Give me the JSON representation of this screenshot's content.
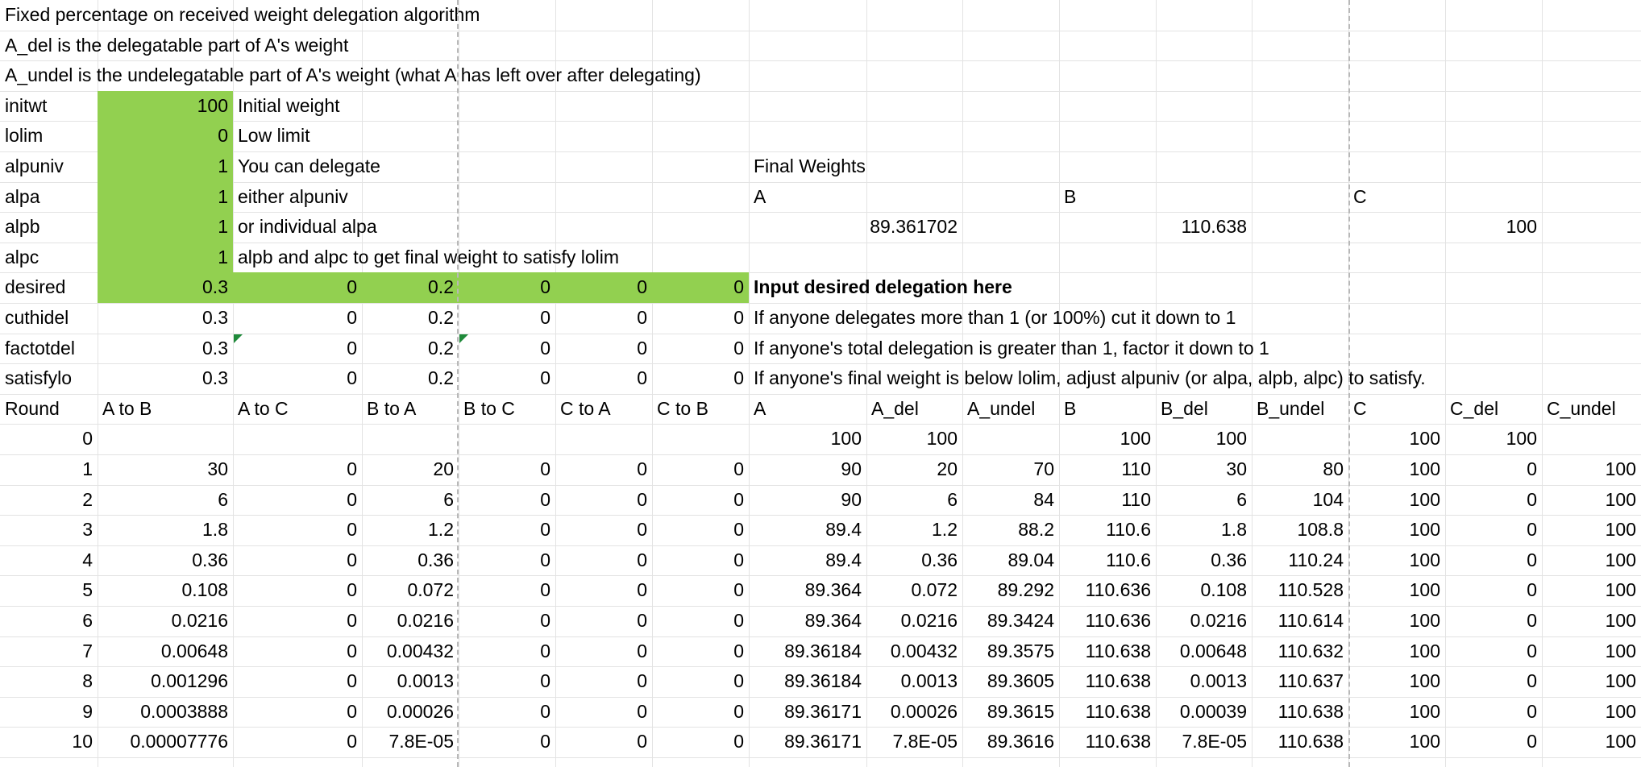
{
  "header_lines": [
    "Fixed percentage on received weight delegation algorithm",
    "A_del is the delegatable part of A's weight",
    "A_undel is the undelegatable part of A's weight (what A has left over after delegating)"
  ],
  "params": [
    {
      "name": "initwt",
      "value": "100",
      "desc": "Initial weight"
    },
    {
      "name": "lolim",
      "value": "0",
      "desc": "Low limit"
    },
    {
      "name": "alpuniv",
      "value": "1",
      "desc": "You can delegate"
    },
    {
      "name": "alpa",
      "value": "1",
      "desc": "either alpuniv"
    },
    {
      "name": "alpb",
      "value": "1",
      "desc": "or individual alpa"
    },
    {
      "name": "alpc",
      "value": "1",
      "desc": "alpb and alpc to get final weight to satisfy lolim"
    }
  ],
  "final_weights": {
    "title": "Final Weights",
    "labels": [
      "A",
      "B",
      "C"
    ],
    "values": [
      "89.361702",
      "110.638",
      "100"
    ]
  },
  "delegation_rows": [
    {
      "name": "desired",
      "values": [
        "0.3",
        "0",
        "0.2",
        "0",
        "0",
        "0"
      ],
      "desc": "Input desired delegation here"
    },
    {
      "name": "cuthidel",
      "values": [
        "0.3",
        "0",
        "0.2",
        "0",
        "0",
        "0"
      ],
      "desc": "If anyone delegates more than 1 (or 100%) cut it down to 1"
    },
    {
      "name": "factotdel",
      "values": [
        "0.3",
        "0",
        "0.2",
        "0",
        "0",
        "0"
      ],
      "desc": "If anyone's total delegation is greater than 1, factor it down to 1"
    },
    {
      "name": "satisfylo",
      "values": [
        "0.3",
        "0",
        "0.2",
        "0",
        "0",
        "0"
      ],
      "desc": "If anyone's final weight is below lolim, adjust alpuniv (or alpa, alpb, alpc) to satisfy."
    }
  ],
  "table_headers": [
    "Round",
    "A to B",
    "A to C",
    "B to A",
    "B to C",
    "C to A",
    "C to B",
    "A",
    "A_del",
    "A_undel",
    "B",
    "B_del",
    "B_undel",
    "C",
    "C_del",
    "C_undel"
  ],
  "table_rows": [
    [
      "0",
      "",
      "",
      "",
      "",
      "",
      "",
      "100",
      "100",
      "",
      "100",
      "100",
      "",
      "100",
      "100",
      ""
    ],
    [
      "1",
      "30",
      "0",
      "20",
      "0",
      "0",
      "0",
      "90",
      "20",
      "70",
      "110",
      "30",
      "80",
      "100",
      "0",
      "100"
    ],
    [
      "2",
      "6",
      "0",
      "6",
      "0",
      "0",
      "0",
      "90",
      "6",
      "84",
      "110",
      "6",
      "104",
      "100",
      "0",
      "100"
    ],
    [
      "3",
      "1.8",
      "0",
      "1.2",
      "0",
      "0",
      "0",
      "89.4",
      "1.2",
      "88.2",
      "110.6",
      "1.8",
      "108.8",
      "100",
      "0",
      "100"
    ],
    [
      "4",
      "0.36",
      "0",
      "0.36",
      "0",
      "0",
      "0",
      "89.4",
      "0.36",
      "89.04",
      "110.6",
      "0.36",
      "110.24",
      "100",
      "0",
      "100"
    ],
    [
      "5",
      "0.108",
      "0",
      "0.072",
      "0",
      "0",
      "0",
      "89.364",
      "0.072",
      "89.292",
      "110.636",
      "0.108",
      "110.528",
      "100",
      "0",
      "100"
    ],
    [
      "6",
      "0.0216",
      "0",
      "0.0216",
      "0",
      "0",
      "0",
      "89.364",
      "0.0216",
      "89.3424",
      "110.636",
      "0.0216",
      "110.614",
      "100",
      "0",
      "100"
    ],
    [
      "7",
      "0.00648",
      "0",
      "0.00432",
      "0",
      "0",
      "0",
      "89.36184",
      "0.00432",
      "89.3575",
      "110.638",
      "0.00648",
      "110.632",
      "100",
      "0",
      "100"
    ],
    [
      "8",
      "0.001296",
      "0",
      "0.0013",
      "0",
      "0",
      "0",
      "89.36184",
      "0.0013",
      "89.3605",
      "110.638",
      "0.0013",
      "110.637",
      "100",
      "0",
      "100"
    ],
    [
      "9",
      "0.0003888",
      "0",
      "0.00026",
      "0",
      "0",
      "0",
      "89.36171",
      "0.00026",
      "89.3615",
      "110.638",
      "0.00039",
      "110.638",
      "100",
      "0",
      "100"
    ],
    [
      "10",
      "0.00007776",
      "0",
      "7.8E-05",
      "0",
      "0",
      "0",
      "89.36171",
      "7.8E-05",
      "89.3616",
      "110.638",
      "7.8E-05",
      "110.638",
      "100",
      "0",
      "100"
    ]
  ],
  "colors": {
    "input_fill": "#92d050",
    "gridline": "#e3e3e3",
    "note_marker": "#1f8a3a"
  }
}
